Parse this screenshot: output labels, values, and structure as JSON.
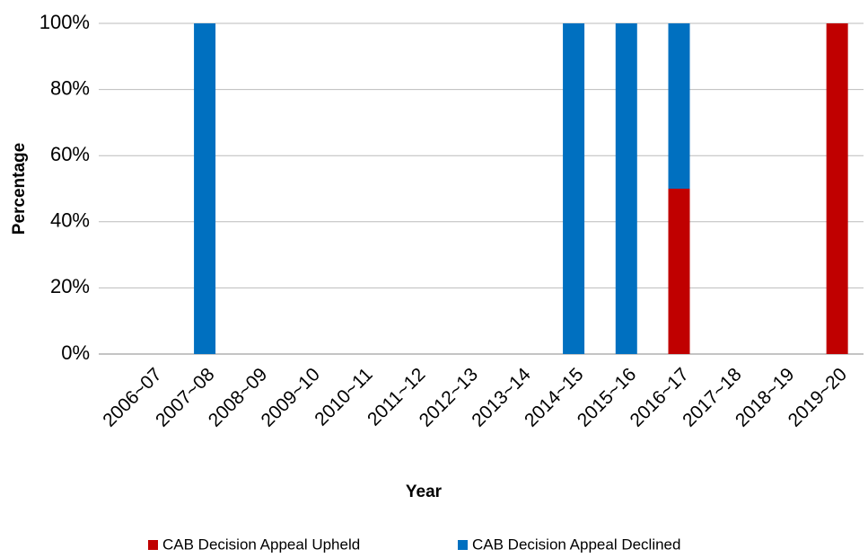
{
  "chart_data": {
    "type": "stacked_bar",
    "x_label": "Year",
    "y_label": "Percentage",
    "categories": [
      "2006~07",
      "2007~08",
      "2008~09",
      "2009~10",
      "2010~11",
      "2011~12",
      "2012~13",
      "2013~14",
      "2014~15",
      "2015~16",
      "2016~17",
      "2017~18",
      "2018~19",
      "2019~20"
    ],
    "series": [
      {
        "name": "CAB Decision Appeal Upheld",
        "color": "#c00000",
        "values": [
          0,
          0,
          0,
          0,
          0,
          0,
          0,
          0,
          0,
          0,
          50,
          0,
          0,
          100
        ]
      },
      {
        "name": "CAB Decision Appeal Declined",
        "color": "#0070c0",
        "values": [
          0,
          100,
          0,
          0,
          0,
          0,
          0,
          0,
          100,
          100,
          50,
          0,
          0,
          0
        ]
      }
    ],
    "ylim": [
      0,
      100
    ],
    "yticks": [
      {
        "value": 0,
        "label": "0%"
      },
      {
        "value": 20,
        "label": "20%"
      },
      {
        "value": 40,
        "label": "40%"
      },
      {
        "value": 60,
        "label": "60%"
      },
      {
        "value": 80,
        "label": "80%"
      },
      {
        "value": 100,
        "label": "100%"
      }
    ],
    "grid": true,
    "legend": "bottom"
  }
}
